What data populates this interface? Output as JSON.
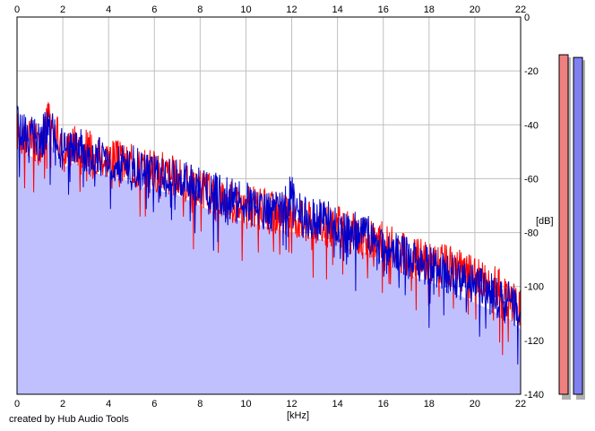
{
  "footer_text": "created by Hub Audio Tools",
  "chart_data": {
    "type": "area",
    "title": "",
    "xlabel": "[kHz]",
    "ylabel": "[dB]",
    "xlim": [
      0,
      22
    ],
    "ylim": [
      -140,
      0
    ],
    "x_ticks": [
      "0",
      "2",
      "4",
      "6",
      "8",
      "10",
      "12",
      "14",
      "16",
      "18",
      "20",
      "22"
    ],
    "y_ticks": [
      "0",
      "-20",
      "-40",
      "-60",
      "-80",
      "-100",
      "-120",
      "-140"
    ],
    "grid": true,
    "colors": {
      "red_channel": "#ff0000",
      "blue_channel": "#0000cc",
      "fill": "#c0c0ff",
      "grid": "#c0c0c0",
      "meter_red": "#f08080",
      "meter_blue": "#8080f0"
    },
    "series": [
      {
        "color": "#ff0000",
        "x": [
          0,
          0.5,
          1,
          1.4,
          2,
          2.5,
          3,
          3.5,
          4,
          4.5,
          5,
          5.5,
          6,
          6.5,
          7,
          7.5,
          8,
          8.5,
          9,
          9.5,
          10,
          10.5,
          11,
          11.5,
          12,
          12.5,
          13,
          13.5,
          14,
          14.5,
          15,
          15.5,
          16,
          16.5,
          17,
          17.5,
          18,
          18.5,
          19,
          19.5,
          20,
          20.5,
          21,
          21.5,
          22
        ],
        "values": [
          -42,
          -45,
          -48,
          -36,
          -50,
          -47,
          -49,
          -51,
          -52,
          -54,
          -55,
          -56,
          -57,
          -58,
          -60,
          -62,
          -64,
          -66,
          -67,
          -69,
          -70,
          -71,
          -72,
          -73,
          -74,
          -75,
          -76,
          -77,
          -78,
          -80,
          -81,
          -82,
          -84,
          -86,
          -88,
          -90,
          -91,
          -92,
          -93,
          -95,
          -96,
          -97,
          -100,
          -104,
          -108
        ]
      },
      {
        "color": "#0000cc",
        "x": [
          0,
          0.5,
          1,
          1.4,
          2,
          2.5,
          3,
          3.5,
          4,
          4.5,
          5,
          5.5,
          6,
          6.5,
          7,
          7.5,
          8,
          8.5,
          9,
          9.5,
          10,
          10.5,
          11,
          11.5,
          12,
          12.5,
          13,
          13.5,
          14,
          14.5,
          15,
          15.5,
          16,
          16.5,
          17,
          17.5,
          18,
          18.5,
          19,
          19.5,
          20,
          20.5,
          21,
          21.5,
          22
        ],
        "values": [
          -40,
          -44,
          -46,
          -40,
          -50,
          -48,
          -50,
          -52,
          -53,
          -54,
          -55,
          -57,
          -58,
          -59,
          -60,
          -62,
          -63,
          -65,
          -66,
          -68,
          -69,
          -70,
          -72,
          -73,
          -66,
          -74,
          -75,
          -76,
          -78,
          -79,
          -80,
          -82,
          -85,
          -87,
          -89,
          -91,
          -92,
          -94,
          -96,
          -98,
          -100,
          -102,
          -104,
          -106,
          -110
        ]
      }
    ],
    "meters": [
      {
        "color": "#f08080",
        "top_db": -14
      },
      {
        "color": "#8080f0",
        "top_db": -15
      }
    ]
  }
}
